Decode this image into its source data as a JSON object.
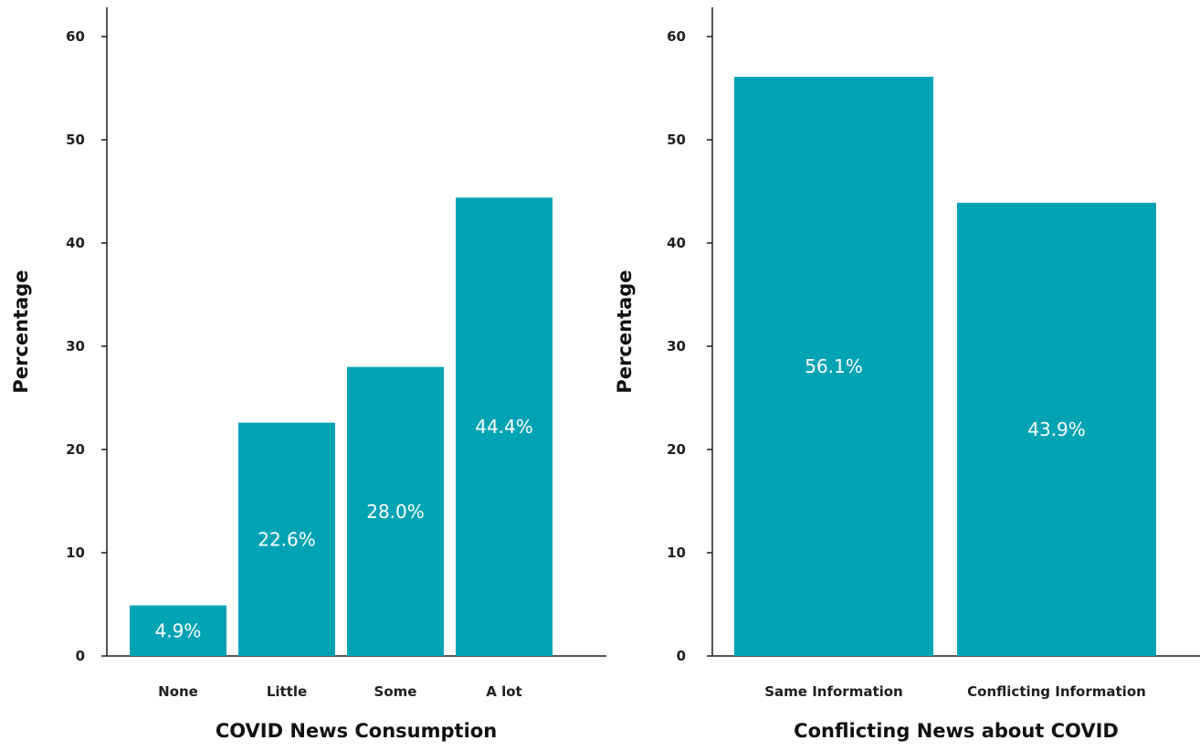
{
  "colors": {
    "bar": "#00A3B4",
    "axis": "#1f1f1f",
    "bar_label": "#ffffff"
  },
  "chart_data": [
    {
      "type": "bar",
      "categories": [
        "None",
        "Little",
        "Some",
        "A lot"
      ],
      "values": [
        4.9,
        22.6,
        28.0,
        44.4
      ],
      "data_labels": [
        "4.9%",
        "22.6%",
        "28.0%",
        "44.4%"
      ],
      "xlabel": "COVID News Consumption",
      "ylabel": "Percentage",
      "ylim": [
        0,
        60
      ],
      "yticks": [
        0,
        10,
        20,
        30,
        40,
        50,
        60
      ],
      "grid": false,
      "legend": "none"
    },
    {
      "type": "bar",
      "categories": [
        "Same Information",
        "Conflicting Information"
      ],
      "values": [
        56.1,
        43.9
      ],
      "data_labels": [
        "56.1%",
        "43.9%"
      ],
      "xlabel": "Conflicting News about COVID",
      "ylabel": "Percentage",
      "ylim": [
        0,
        60
      ],
      "yticks": [
        0,
        10,
        20,
        30,
        40,
        50,
        60
      ],
      "grid": false,
      "legend": "none"
    }
  ]
}
